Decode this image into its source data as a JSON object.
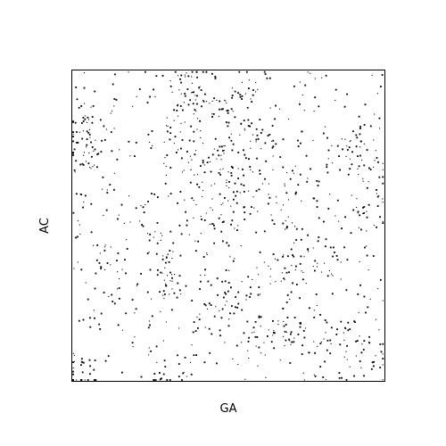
{
  "chart_data": {
    "type": "scatter",
    "title": "",
    "xlabel": "GA",
    "ylabel": "AC",
    "xlim": [
      0,
      1
    ],
    "ylim": [
      0,
      1
    ],
    "grid": false,
    "legend": "none",
    "ticks": "none",
    "marker": "dot",
    "series": [
      {
        "color": "#000000",
        "points_note_count": 1200
      }
    ]
  }
}
